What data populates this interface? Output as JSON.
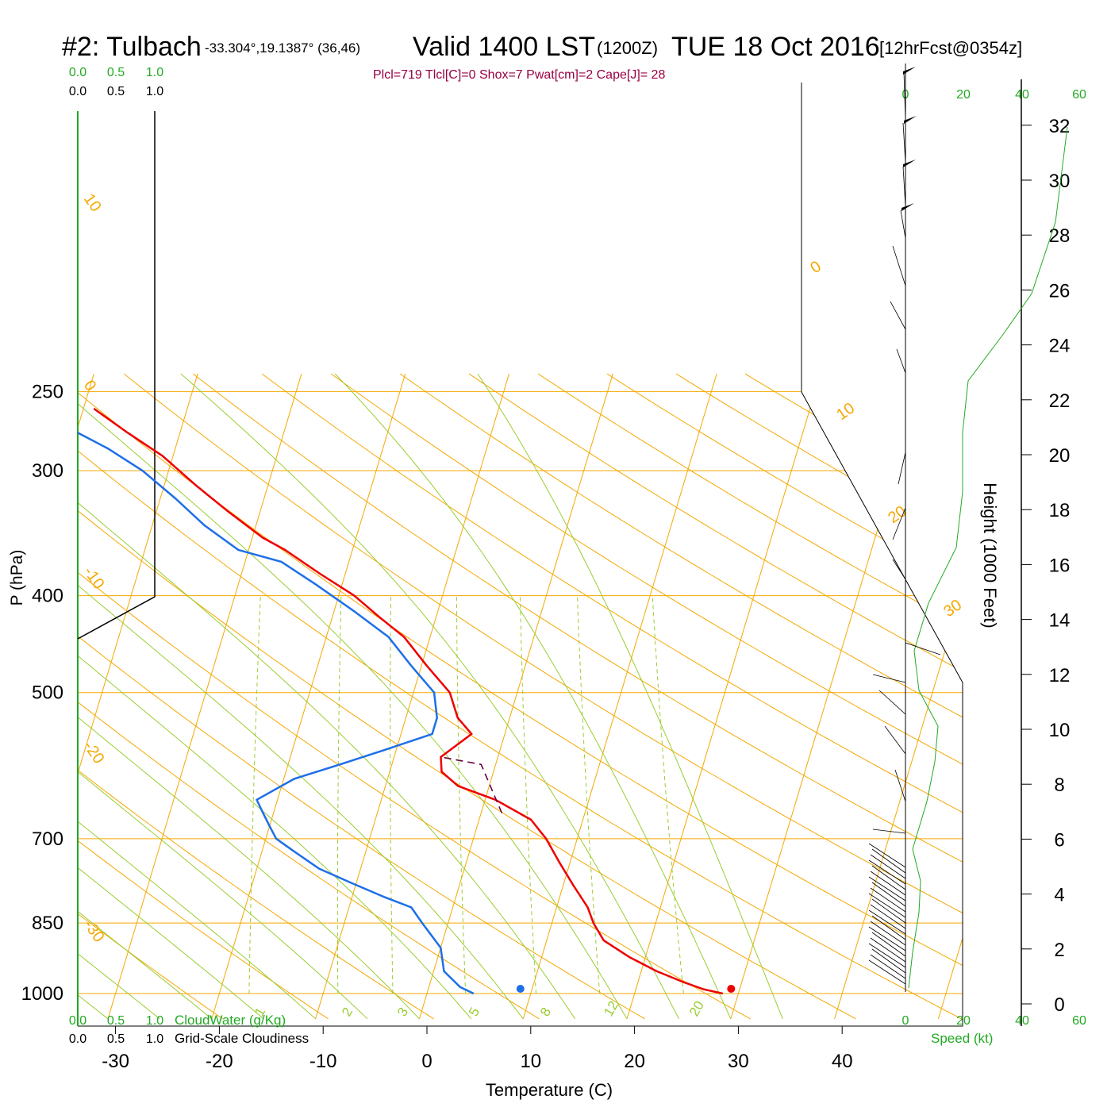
{
  "header": {
    "station": "#2: Tulbach",
    "coords": "-33.304°,19.1387° (36,46)",
    "valid": "Valid 1400 LST",
    "zulu": "(1200Z)",
    "date": "TUE 18 Oct 2016",
    "fcst": "[12hrFcst@0354z]",
    "indices": "Plcl=719 Tlcl[C]=0 Shox=7 Pwat[cm]=2 Cape[J]= 28"
  },
  "colors": {
    "isotherm": "#f5a800",
    "dry_adiabat": "#9acd32",
    "mixing_ratio": "#9acd32",
    "temperature": "#ee0000",
    "dewpoint": "#1e6fe8",
    "parcel": "#660044",
    "cloud": "#22aa22",
    "indices": "#990044"
  },
  "chart_data": {
    "type": "line",
    "subtype": "skew-T log-P sounding",
    "xlabel": "Temperature (C)",
    "ylabel": "P (hPa)",
    "right_label": "Height (1000 Feet)",
    "xlim": [
      -33,
      42
    ],
    "ylim": [
      1050,
      250
    ],
    "x_ticks": [
      -30,
      -20,
      -10,
      0,
      10,
      20,
      30,
      40
    ],
    "pressure_ticks": [
      250,
      300,
      400,
      500,
      700,
      850,
      1000
    ],
    "height_ticks_kft": [
      0,
      2,
      4,
      6,
      8,
      10,
      12,
      14,
      16,
      18,
      20,
      22,
      24,
      26,
      28,
      30,
      32
    ],
    "isotherm_labels": [
      "10",
      "0",
      "-10",
      "-20",
      "-30",
      "0",
      "10",
      "20",
      "30"
    ],
    "mixing_ratio_labels": [
      "1",
      "2",
      "3",
      "5",
      "8",
      "12",
      "20"
    ],
    "series": [
      {
        "name": "temperature",
        "points": [
          [
            28.5,
            1000
          ],
          [
            26.5,
            990
          ],
          [
            24.5,
            975
          ],
          [
            21.5,
            950
          ],
          [
            18.5,
            920
          ],
          [
            15.5,
            885
          ],
          [
            14,
            850
          ],
          [
            13,
            820
          ],
          [
            11,
            780
          ],
          [
            9,
            740
          ],
          [
            7,
            700
          ],
          [
            5,
            670
          ],
          [
            1,
            640
          ],
          [
            -3,
            620
          ],
          [
            -5,
            600
          ],
          [
            -5.5,
            580
          ],
          [
            -3.2,
            550
          ],
          [
            -5,
            530
          ],
          [
            -6.5,
            500
          ],
          [
            -9.5,
            470
          ],
          [
            -12.5,
            440
          ],
          [
            -15.5,
            420
          ],
          [
            -18.5,
            400
          ],
          [
            -22.5,
            380
          ],
          [
            -26.5,
            360
          ],
          [
            -29,
            350
          ],
          [
            -33,
            330
          ],
          [
            -37,
            310
          ],
          [
            -41,
            290
          ],
          [
            -45,
            275
          ],
          [
            -49,
            260
          ]
        ]
      },
      {
        "name": "dewpoint",
        "points": [
          [
            4.5,
            1000
          ],
          [
            3,
            985
          ],
          [
            1,
            950
          ],
          [
            0,
            900
          ],
          [
            -2.5,
            850
          ],
          [
            -4,
            820
          ],
          [
            -7,
            800
          ],
          [
            -10.5,
            775
          ],
          [
            -14,
            750
          ],
          [
            -17,
            720
          ],
          [
            -19,
            700
          ],
          [
            -20,
            680
          ],
          [
            -21,
            660
          ],
          [
            -22,
            640
          ],
          [
            -19,
            610
          ],
          [
            -15,
            590
          ],
          [
            -11,
            570
          ],
          [
            -7,
            550
          ],
          [
            -7,
            530
          ],
          [
            -8,
            500
          ],
          [
            -11,
            470
          ],
          [
            -14,
            440
          ],
          [
            -18,
            415
          ],
          [
            -22.5,
            390
          ],
          [
            -26.5,
            370
          ],
          [
            -31,
            360
          ],
          [
            -35,
            340
          ],
          [
            -38.5,
            320
          ],
          [
            -42.5,
            300
          ],
          [
            -46.5,
            285
          ],
          [
            -51.5,
            270
          ],
          [
            -54.5,
            260
          ]
        ]
      },
      {
        "name": "parcel",
        "points": [
          [
            2,
            660
          ],
          [
            -1.4,
            590
          ],
          [
            -5.5,
            580
          ]
        ]
      }
    ],
    "surface": {
      "temperature": 29,
      "dewpoint": 8.7,
      "pressure": 1000
    },
    "cloud": {
      "axis_ticks": [
        "0.0",
        "0.5",
        "1.0"
      ],
      "cloud_water_label": "CloudWater (g/Kg)",
      "cloudiness_label": "Grid-Scale Cloudiness"
    },
    "wind": {
      "speed_ticks": [
        "0",
        "20",
        "40",
        "60"
      ],
      "speed_label": "Speed (kt)"
    }
  }
}
